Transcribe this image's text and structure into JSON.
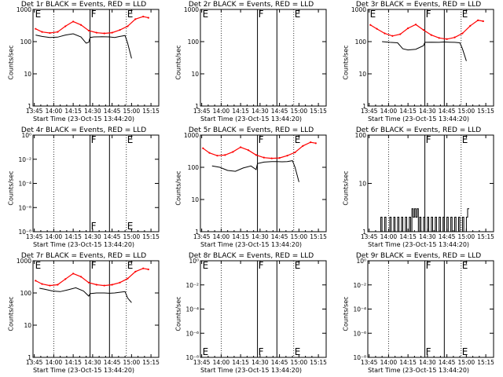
{
  "figure": {
    "x_tick_labels": [
      "13:45",
      "14:00",
      "14:15",
      "14:30",
      "14:45",
      "15:00",
      "15:15"
    ],
    "x_tick_minutes": [
      0,
      15,
      30,
      45,
      60,
      75,
      90
    ],
    "x_range_minutes": [
      -1,
      96
    ],
    "colors": {
      "events": "#000000",
      "lld": "#ff0000",
      "axis": "#000000"
    }
  },
  "chart_data": [
    {
      "type": "line",
      "title": "Det 1r BLACK = Events, RED = LLD",
      "xlabel": "Start Time (23-Oct-15 13:44:20)",
      "ylabel": "Counts/sec",
      "yscale": "log",
      "ylim": [
        1,
        1000
      ],
      "y_tick_labels": [
        "1",
        "10",
        "100",
        "1000"
      ],
      "y_tick_values": [
        1,
        10,
        100,
        1000
      ],
      "dotted_lines_min": [
        15,
        71
      ],
      "solid_lines_min": [
        43,
        58
      ],
      "markers": [
        {
          "label": "E",
          "x": 0
        },
        {
          "label": "F",
          "x": 43
        },
        {
          "label": "E",
          "x": 71
        }
      ],
      "series": [
        {
          "color": "#000000",
          "x": [
            1,
            6,
            12,
            18,
            24,
            30,
            36,
            40,
            42,
            43,
            46,
            52,
            58,
            62,
            66,
            70,
            72,
            75
          ],
          "y": [
            160,
            145,
            135,
            138,
            160,
            175,
            140,
            90,
            95,
            135,
            140,
            142,
            140,
            135,
            145,
            155,
            90,
            30
          ]
        },
        {
          "color": "#ff0000",
          "x": [
            1,
            6,
            12,
            18,
            24,
            30,
            36,
            42,
            48,
            54,
            60,
            66,
            72,
            78,
            84,
            88
          ],
          "y": [
            250,
            200,
            185,
            200,
            300,
            420,
            330,
            220,
            190,
            180,
            190,
            230,
            300,
            500,
            600,
            550
          ]
        }
      ]
    },
    {
      "type": "line",
      "title": "Det 2r BLACK = Events, RED = LLD",
      "xlabel": "Start Time (23-Oct-15 13:44:20)",
      "ylabel": "Counts/sec",
      "yscale": "log",
      "ylim": [
        1,
        1000
      ],
      "y_tick_labels": [
        "1",
        "10",
        "100",
        "1000"
      ],
      "y_tick_values": [
        1,
        10,
        100,
        1000
      ],
      "dotted_lines_min": [
        15,
        71
      ],
      "solid_lines_min": [
        43,
        58
      ],
      "markers": [
        {
          "label": "E",
          "x": 0
        },
        {
          "label": "F",
          "x": 43
        },
        {
          "label": "E",
          "x": 71
        }
      ],
      "series": []
    },
    {
      "type": "line",
      "title": "Det 3r BLACK = Events, RED = LLD",
      "xlabel": "Start Time (23-Oct-15 13:44:20)",
      "ylabel": "Counts/sec",
      "yscale": "log",
      "ylim": [
        1,
        1000
      ],
      "y_tick_labels": [
        "1",
        "10",
        "100",
        "1000"
      ],
      "y_tick_values": [
        1,
        10,
        100,
        1000
      ],
      "dotted_lines_min": [
        15,
        71
      ],
      "solid_lines_min": [
        43,
        58
      ],
      "markers": [
        {
          "label": "E",
          "x": 0
        },
        {
          "label": "F",
          "x": 43
        },
        {
          "label": "E",
          "x": 71
        }
      ],
      "series": [
        {
          "color": "#000000",
          "x": [
            10,
            16,
            22,
            26,
            30,
            36,
            42,
            43,
            48,
            54,
            58,
            62,
            66,
            70,
            72,
            75
          ],
          "y": [
            100,
            95,
            92,
            60,
            55,
            58,
            75,
            95,
            96,
            95,
            98,
            96,
            95,
            92,
            60,
            25
          ]
        },
        {
          "color": "#ff0000",
          "x": [
            1,
            6,
            12,
            18,
            24,
            30,
            36,
            42,
            48,
            54,
            60,
            66,
            72,
            78,
            84,
            88
          ],
          "y": [
            330,
            250,
            180,
            150,
            170,
            260,
            340,
            230,
            160,
            130,
            120,
            135,
            180,
            310,
            460,
            430
          ]
        }
      ]
    },
    {
      "type": "line",
      "title": "Det 4r BLACK = Events, RED = LLD",
      "xlabel": "Start Time (23-Oct-15 13:44:20)",
      "ylabel": "Counts/sec",
      "yscale": "log",
      "ylim": [
        1e-08,
        1
      ],
      "y_tick_labels": [
        "10⁻⁸",
        "10⁻⁶",
        "10⁻⁴",
        "10⁻²",
        "10⁰"
      ],
      "y_tick_values": [
        1e-08,
        1e-06,
        0.0001,
        0.01,
        1
      ],
      "dotted_lines_min": [
        15,
        71
      ],
      "solid_lines_min": [
        43,
        58
      ],
      "markers": [
        {
          "label": "F",
          "x": 43
        },
        {
          "label": "E",
          "x": 71
        }
      ],
      "series": []
    },
    {
      "type": "line",
      "title": "Det 5r BLACK = Events, RED = LLD",
      "xlabel": "Start Time (23-Oct-15 13:44:20)",
      "ylabel": "Counts/sec",
      "yscale": "log",
      "ylim": [
        1,
        1000
      ],
      "y_tick_labels": [
        "1",
        "10",
        "100",
        "1000"
      ],
      "y_tick_values": [
        1,
        10,
        100,
        1000
      ],
      "dotted_lines_min": [
        15,
        71
      ],
      "solid_lines_min": [
        43,
        58
      ],
      "markers": [
        {
          "label": "F",
          "x": 43
        },
        {
          "label": "E",
          "x": 71
        }
      ],
      "series": [
        {
          "color": "#000000",
          "x": [
            8,
            14,
            20,
            26,
            32,
            38,
            42,
            43,
            48,
            54,
            58,
            62,
            66,
            70,
            72,
            75
          ],
          "y": [
            110,
            100,
            80,
            75,
            95,
            110,
            85,
            130,
            145,
            150,
            150,
            148,
            150,
            160,
            100,
            35
          ]
        },
        {
          "color": "#ff0000",
          "x": [
            1,
            6,
            12,
            18,
            24,
            30,
            36,
            42,
            48,
            54,
            60,
            66,
            72,
            78,
            84,
            88
          ],
          "y": [
            390,
            280,
            230,
            240,
            300,
            420,
            340,
            240,
            200,
            190,
            195,
            230,
            290,
            460,
            600,
            560
          ]
        }
      ]
    },
    {
      "type": "line",
      "title": "Det 6r BLACK = Events, RED = LLD",
      "xlabel": "Start Time (23-Oct-15 13:44:20)",
      "ylabel": "Counts/sec",
      "yscale": "log",
      "ylim": [
        1,
        100
      ],
      "y_tick_labels": [
        "1",
        "10",
        "100"
      ],
      "y_tick_values": [
        1,
        10,
        100
      ],
      "dotted_lines_min": [
        15,
        71
      ],
      "solid_lines_min": [
        43,
        58
      ],
      "markers": [
        {
          "label": "F",
          "x": 43
        },
        {
          "label": "E",
          "x": 71
        }
      ],
      "series": [
        {
          "color": "#000000",
          "x": [
            8,
            9,
            10,
            12,
            13,
            16,
            17,
            19,
            20,
            22,
            23,
            25,
            26,
            28,
            29,
            31,
            32,
            33,
            34,
            35,
            36,
            37,
            38,
            39,
            40,
            42,
            43,
            45,
            46,
            48,
            49,
            51,
            52,
            54,
            55,
            57,
            58,
            60,
            61,
            63,
            64,
            66,
            67,
            69,
            70,
            72,
            73,
            75,
            76
          ],
          "y": [
            1,
            2,
            1,
            2,
            1,
            2,
            1,
            2,
            1,
            2,
            1,
            2,
            1,
            2,
            1,
            2,
            1,
            3,
            2,
            3,
            2,
            3,
            1,
            2,
            1,
            2,
            1,
            2,
            1,
            2,
            1,
            2,
            1,
            2,
            1,
            2,
            1,
            2,
            1,
            2,
            1,
            2,
            1,
            2,
            1,
            2,
            1,
            2,
            3
          ]
        }
      ]
    },
    {
      "type": "line",
      "title": "Det 7r BLACK = Events, RED = LLD",
      "xlabel": "Start Time (23-Oct-15 13:44:20)",
      "ylabel": "Counts/sec",
      "yscale": "log",
      "ylim": [
        1,
        1000
      ],
      "y_tick_labels": [
        "1",
        "10",
        "100",
        "1000"
      ],
      "y_tick_values": [
        1,
        10,
        100,
        1000
      ],
      "dotted_lines_min": [
        15,
        71
      ],
      "solid_lines_min": [
        43,
        58
      ],
      "markers": [
        {
          "label": "E",
          "x": 0
        },
        {
          "label": "F",
          "x": 43
        },
        {
          "label": "E",
          "x": 71
        }
      ],
      "series": [
        {
          "color": "#000000",
          "x": [
            4,
            8,
            14,
            20,
            26,
            32,
            38,
            42,
            43,
            48,
            54,
            58,
            62,
            66,
            70,
            72,
            75
          ],
          "y": [
            140,
            130,
            115,
            110,
            125,
            145,
            115,
            80,
            95,
            100,
            100,
            98,
            100,
            105,
            110,
            70,
            50
          ]
        },
        {
          "color": "#ff0000",
          "x": [
            1,
            6,
            12,
            18,
            24,
            30,
            36,
            42,
            48,
            54,
            60,
            66,
            72,
            78,
            84,
            88
          ],
          "y": [
            240,
            190,
            170,
            180,
            270,
            400,
            320,
            210,
            180,
            170,
            180,
            210,
            280,
            460,
            580,
            540
          ]
        }
      ]
    },
    {
      "type": "line",
      "title": "Det 8r BLACK = Events, RED = LLD",
      "xlabel": "Start Time (23-Oct-15 13:44:20)",
      "ylabel": "Counts/sec",
      "yscale": "log",
      "ylim": [
        1e-08,
        1
      ],
      "y_tick_labels": [
        "10⁻⁸",
        "10⁻⁶",
        "10⁻⁴",
        "10⁻²",
        "10⁰"
      ],
      "y_tick_values": [
        1e-08,
        1e-06,
        0.0001,
        0.01,
        1
      ],
      "dotted_lines_min": [
        15,
        71
      ],
      "solid_lines_min": [
        43,
        58
      ],
      "markers": [
        {
          "label": "E",
          "x": 0
        },
        {
          "label": "F",
          "x": 43
        },
        {
          "label": "E",
          "x": 71
        }
      ],
      "series": []
    },
    {
      "type": "line",
      "title": "Det 9r BLACK = Events, RED = LLD",
      "xlabel": "Start Time (23-Oct-15 13:44:20)",
      "ylabel": "Counts/sec",
      "yscale": "log",
      "ylim": [
        1e-08,
        1
      ],
      "y_tick_labels": [
        "10⁻⁸",
        "10⁻⁶",
        "10⁻⁴",
        "10⁻²",
        "10⁰"
      ],
      "y_tick_values": [
        1e-08,
        1e-06,
        0.0001,
        0.01,
        1
      ],
      "dotted_lines_min": [
        15,
        71
      ],
      "solid_lines_min": [
        43,
        58
      ],
      "markers": [
        {
          "label": "F",
          "x": 43
        },
        {
          "label": "E",
          "x": 71
        }
      ],
      "series": []
    }
  ]
}
